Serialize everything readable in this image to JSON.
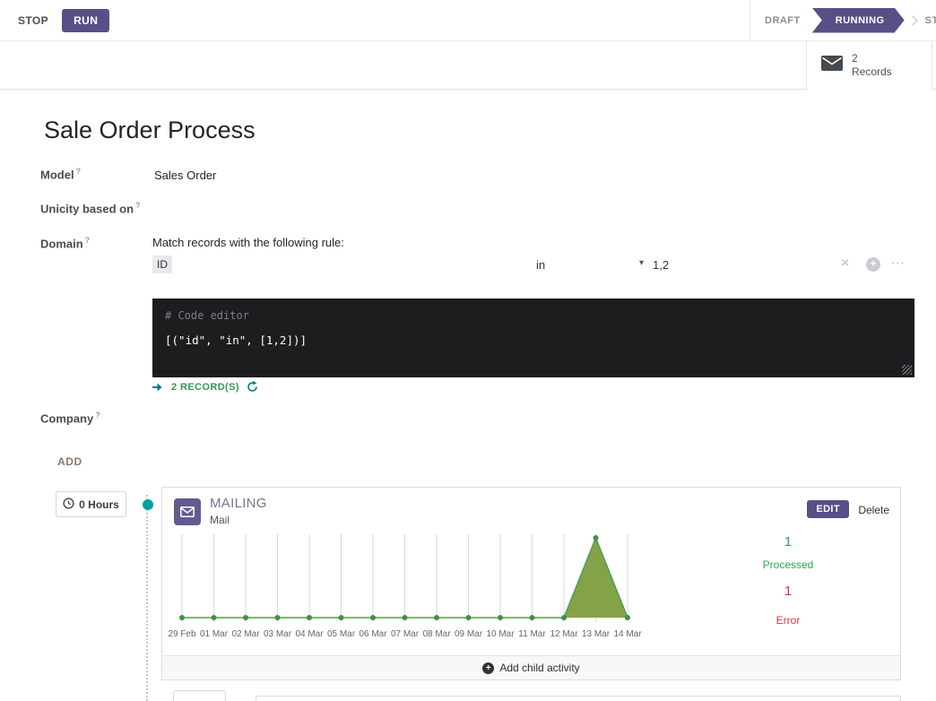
{
  "topbar": {
    "stop_label": "STOP",
    "run_label": "RUN",
    "statusbar": [
      {
        "label": "DRAFT"
      },
      {
        "label": "RUNNING"
      },
      {
        "label": "STOPPED"
      }
    ]
  },
  "button_box": {
    "records_count": "2",
    "records_label": "Records"
  },
  "sheet": {
    "title": "Sale Order Process",
    "help_marker": "?",
    "fields": {
      "model_label": "Model",
      "model_value": "Sales Order",
      "unicity_label": "Unicity based on",
      "domain_label": "Domain",
      "domain_intro": "Match records with the following rule:",
      "company_label": "Company"
    },
    "domain_rule": {
      "field": "ID",
      "operator": "in",
      "value": "1,2"
    },
    "code_editor": {
      "placeholder": "# Code editor",
      "code": "[(\"id\", \"in\", [1,2])]"
    },
    "records_link_label": "2 RECORD(S)"
  },
  "workflow": {
    "add_label": "ADD",
    "trigger_label": "0 Hours",
    "activity": {
      "title": "MAILING",
      "subtitle": "Mail",
      "edit_label": "EDIT",
      "delete_label": "Delete",
      "processed_value": "1",
      "processed_label": "Processed",
      "error_value": "1",
      "error_label": "Error",
      "add_child_label": "Add child activity"
    }
  },
  "icons": {
    "caret_down": "▾",
    "close": "×",
    "plus": "+",
    "ellipsis": "···"
  },
  "colors": {
    "accent_purple": "#584f87",
    "teal": "#00a09d",
    "success_green": "#28a745",
    "error_red": "#dc3545"
  },
  "chart_data": {
    "type": "area",
    "title": "",
    "categories": [
      "29 Feb",
      "01 Mar",
      "02 Mar",
      "03 Mar",
      "04 Mar",
      "05 Mar",
      "06 Mar",
      "07 Mar",
      "08 Mar",
      "09 Mar",
      "10 Mar",
      "11 Mar",
      "12 Mar",
      "13 Mar",
      "14 Mar"
    ],
    "values": [
      0,
      0,
      0,
      0,
      0,
      0,
      0,
      0,
      0,
      0,
      0,
      0,
      0,
      1,
      0
    ],
    "ylim": [
      0,
      1
    ],
    "grid": true,
    "legend": false,
    "line_color": "#4aa14e",
    "fill_color": "#7d9d3e",
    "point_color": "#3f9145",
    "grid_color": "#d8d8d8"
  }
}
